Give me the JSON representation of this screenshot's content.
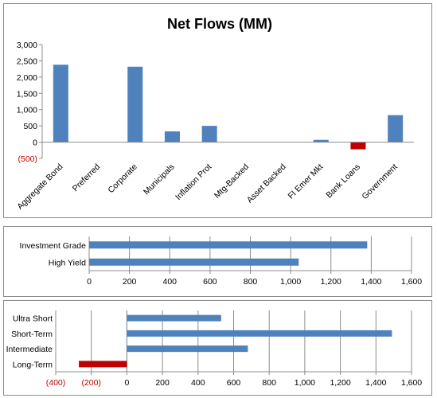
{
  "colors": {
    "positive": "#4f81bd",
    "negative": "#c00000",
    "negative_label": "#c00000",
    "grid": "#8c8c8c",
    "text": "#000000"
  },
  "chart_data": [
    {
      "type": "bar",
      "title": "Net Flows (MM)",
      "categories": [
        "Aggregate Bond",
        "Preferred",
        "Corporate",
        "Municipals",
        "Inflation Prot",
        "Mtg-Backed",
        "Asset Backed",
        "FI Emer Mkt",
        "Bank Loans",
        "Government"
      ],
      "values": [
        2380,
        0,
        2320,
        330,
        500,
        0,
        0,
        70,
        -220,
        830
      ],
      "ylim": [
        -500,
        3000
      ],
      "yticks": [
        -500,
        0,
        500,
        1000,
        1500,
        2000,
        2500,
        3000
      ],
      "ytick_labels": [
        "(500)",
        "0",
        "500",
        "1,000",
        "1,500",
        "2,000",
        "2,500",
        "3,000"
      ],
      "grid": false,
      "xlabel": "",
      "ylabel": ""
    },
    {
      "type": "bar",
      "orientation": "horizontal",
      "categories": [
        "Investment Grade",
        "High Yield"
      ],
      "values": [
        1380,
        1040
      ],
      "xlim": [
        0,
        1600
      ],
      "xticks": [
        0,
        200,
        400,
        600,
        800,
        1000,
        1200,
        1400,
        1600
      ],
      "xtick_labels": [
        "0",
        "200",
        "400",
        "600",
        "800",
        "1,000",
        "1,200",
        "1,400",
        "1,600"
      ],
      "grid": true
    },
    {
      "type": "bar",
      "orientation": "horizontal",
      "categories": [
        "Ultra Short",
        "Short-Term",
        "Intermediate",
        "Long-Term"
      ],
      "values": [
        530,
        1490,
        680,
        -270
      ],
      "xlim": [
        -400,
        1600
      ],
      "xticks": [
        -400,
        -200,
        0,
        200,
        400,
        600,
        800,
        1000,
        1200,
        1400,
        1600
      ],
      "xtick_labels": [
        "(400)",
        "(200)",
        "0",
        "200",
        "400",
        "600",
        "800",
        "1,000",
        "1,200",
        "1,400",
        "1,600"
      ],
      "grid": true
    }
  ]
}
